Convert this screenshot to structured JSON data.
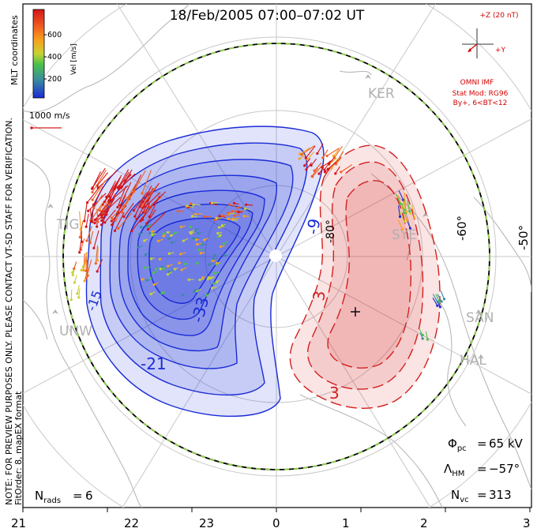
{
  "title": "18/Feb/2005 07:00–07:02 UT",
  "colorbar": {
    "ticks": [
      "600",
      "400",
      "200"
    ],
    "label": "Vel [m/s]",
    "colors": [
      "#d4151b",
      "#f06020",
      "#f7a21d",
      "#c8d233",
      "#49c24a",
      "#3a8aa0",
      "#1a2bd6"
    ]
  },
  "coord_label": "MLT coordinates",
  "scale_vector": "1000 m/s",
  "side_note": "NOTE: FOR PREVIEW PURPOSES ONLY. PLEASE CONTACT VT-SD STAFF FOR VERIFICATION.",
  "fit_note": "FitOrder: 8, mapEX format",
  "imf": {
    "z_label": "+Z (20 nT)",
    "y_label": "+Y",
    "source": "OMNI IMF",
    "stat_mod": "Stat Mod: RG96",
    "condition": "By+, 6<BT<12"
  },
  "stations": [
    "KER",
    "TIG",
    "SYE",
    "UNW",
    "SAN",
    "HAL"
  ],
  "lat_labels": [
    "-60°",
    "-50°",
    "-80°"
  ],
  "contours": {
    "neg_labels": [
      "-9",
      "-33",
      "-21",
      "-15"
    ],
    "pos_labels": [
      "3",
      "3"
    ],
    "neg_color": "#1a2bd6",
    "pos_color": "#d42020"
  },
  "stats": {
    "phi_pc": "65 kV",
    "lambda_hm": "−57°",
    "n_vc": "313",
    "n_rads": "6"
  },
  "mlt_axis": [
    "21",
    "22",
    "23",
    "0",
    "1",
    "2",
    "3"
  ]
}
